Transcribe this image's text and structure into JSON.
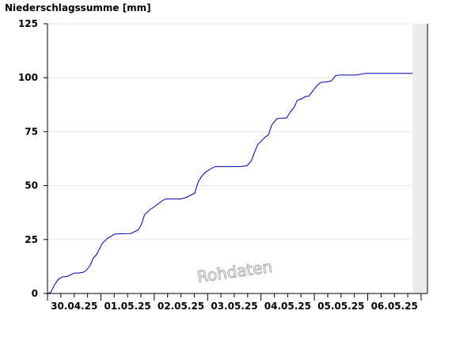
{
  "chart_data": {
    "type": "line",
    "title": "Niederschlagssumme [mm]",
    "xlabel": "",
    "ylabel": "",
    "ylim": [
      0,
      125
    ],
    "xlim": [
      0,
      7.12
    ],
    "yticks": [
      0,
      25,
      50,
      75,
      100,
      125
    ],
    "x_tick_labels": [
      "30.04.25",
      "01.05.25",
      "02.05.25",
      "03.05.25",
      "04.05.25",
      "05.05.25",
      "06.05.25"
    ],
    "grid": true,
    "watermark": "Rohdaten",
    "line_color": "#0000aa",
    "shaded_region_color": "#ebebeb",
    "shaded_region_x": [
      6.84,
      7.12
    ],
    "series": [
      {
        "x": [
          0,
          0.06,
          0.12,
          0.2,
          0.28,
          0.34,
          0.4,
          0.5,
          0.58,
          0.66,
          0.72,
          0.8,
          0.86,
          0.92,
          1.02,
          1.12,
          1.26,
          1.4,
          1.56,
          1.7,
          1.76,
          1.82,
          1.9,
          1.98,
          2.1,
          2.18,
          2.24,
          2.32,
          2.4,
          2.5,
          2.6,
          2.76,
          2.82,
          2.88,
          2.94,
          3.04,
          3.14,
          3.22,
          3.4,
          3.6,
          3.74,
          3.82,
          3.88,
          3.94,
          4.02,
          4.08,
          4.14,
          4.2,
          4.3,
          4.4,
          4.48,
          4.54,
          4.62,
          4.68,
          4.76,
          4.84,
          4.9,
          5.02,
          5.1,
          5.16,
          5.22,
          5.32,
          5.4,
          5.48,
          5.56,
          5.66,
          5.78,
          5.96,
          6.18,
          6.4,
          6.66,
          6.84
        ],
        "y": [
          0,
          0.5,
          3.5,
          6.5,
          7.7,
          7.8,
          8.2,
          9.5,
          9.5,
          9.8,
          10.5,
          13,
          16.5,
          18,
          23,
          25.5,
          27.5,
          27.7,
          27.8,
          29.5,
          32,
          36.5,
          38.5,
          39.8,
          42,
          43.5,
          43.8,
          43.8,
          43.8,
          43.8,
          44.5,
          46.5,
          51.5,
          54,
          55.8,
          57.5,
          58.8,
          58.8,
          58.8,
          58.8,
          59.2,
          61.5,
          65.5,
          69,
          71,
          72.5,
          73.5,
          78,
          81,
          81.3,
          81.3,
          83.8,
          86.3,
          89.5,
          90.2,
          91.3,
          91.5,
          95.5,
          97.5,
          98,
          98,
          98.5,
          101,
          101.2,
          101.2,
          101.2,
          101.2,
          102,
          102,
          102,
          102,
          102
        ]
      }
    ]
  }
}
